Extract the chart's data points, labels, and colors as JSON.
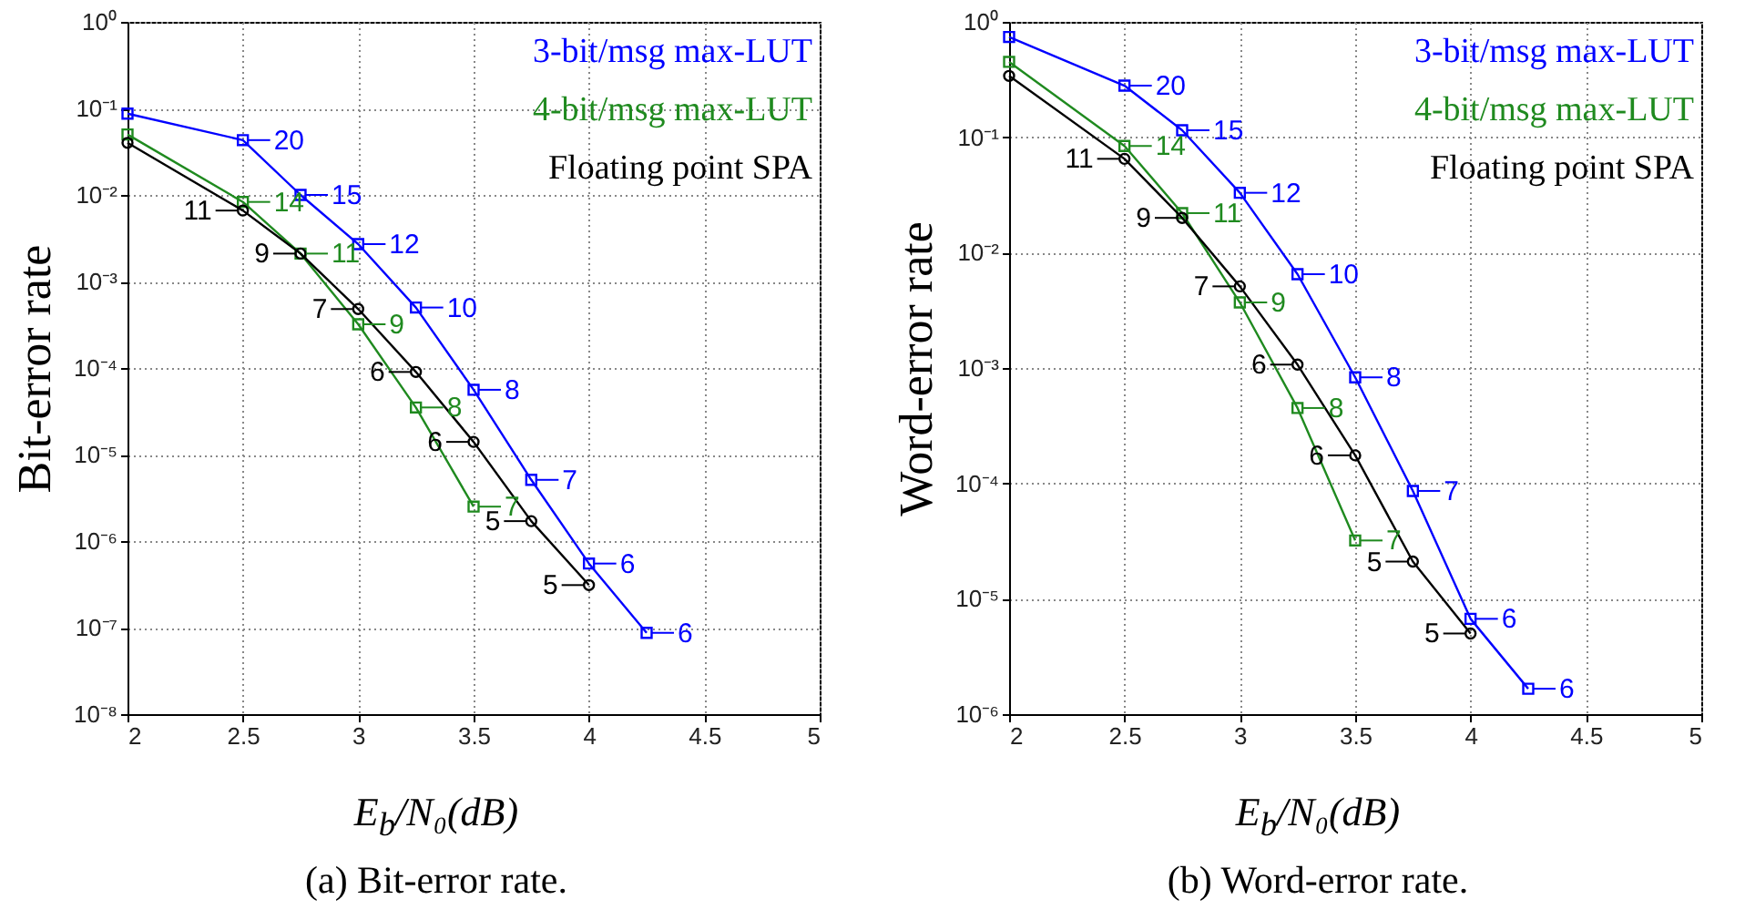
{
  "chart_data": [
    {
      "type": "line",
      "title": "(a) Bit-error rate.",
      "xlabel": "E$_{b}$/N₀(dB)",
      "ylabel": "Bit-error rate",
      "xlim": [
        2,
        5
      ],
      "xticks": [
        2,
        2.5,
        3,
        3.5,
        4,
        4.5,
        5
      ],
      "ylim": [
        1e-08,
        1
      ],
      "yticks": [
        {
          "value": 1e-08,
          "label": "10⁻⁸"
        },
        {
          "value": 1e-07,
          "label": "10⁻⁷"
        },
        {
          "value": 1e-06,
          "label": "10⁻⁶"
        },
        {
          "value": 1e-05,
          "label": "10⁻⁵"
        },
        {
          "value": 0.0001,
          "label": "10⁻⁴"
        },
        {
          "value": 0.001,
          "label": "10⁻³"
        },
        {
          "value": 0.01,
          "label": "10⁻²"
        },
        {
          "value": 0.1,
          "label": "10⁻¹"
        },
        {
          "value": 1,
          "label": "10⁰"
        }
      ],
      "log": "y",
      "grid": true,
      "legend": "top right",
      "line_style": "solid",
      "series": [
        {
          "name": "3-bit/msg max-LUT",
          "color": "#0000ff",
          "marker": "square",
          "x": [
            2,
            2.5,
            2.75,
            3,
            3.25,
            3.5,
            3.75,
            4,
            4.25
          ],
          "values": [
            0.087,
            0.043,
            0.01,
            0.0027,
            0.0005,
            5.6e-05,
            5.1e-06,
            5.5e-07,
            8.7e-08
          ]
        },
        {
          "name": "4-bit/msg max-LUT",
          "color": "#1f8a1f",
          "marker": "square",
          "x": [
            2,
            2.5,
            2.75,
            3,
            3.25,
            3.5
          ],
          "values": [
            0.05,
            0.0083,
            0.0021,
            0.00032,
            3.5e-05,
            2.5e-06
          ]
        },
        {
          "name": "Floating point SPA",
          "color": "#000000",
          "marker": "circle",
          "x": [
            2,
            2.5,
            2.75,
            3,
            3.25,
            3.5,
            3.75,
            4
          ],
          "values": [
            0.04,
            0.0066,
            0.0021,
            0.00048,
            9e-05,
            1.4e-05,
            1.7e-06,
            3.1e-07
          ]
        }
      ],
      "annotations": [
        {
          "text": "14",
          "x": 2.5,
          "y": 0.0083
        },
        {
          "text": "11",
          "x": 2.75,
          "y": 0.0021
        },
        {
          "text": "9",
          "x": 3,
          "y": 0.00032
        },
        {
          "text": "8",
          "x": 3.25,
          "y": 3.5e-05
        },
        {
          "text": "7",
          "x": 3.5,
          "y": 2.5e-06
        },
        {
          "text": "20",
          "x": 2.5,
          "y": 0.043
        },
        {
          "text": "15",
          "x": 2.75,
          "y": 0.01
        },
        {
          "text": "12",
          "x": 3,
          "y": 0.0027
        },
        {
          "text": "10",
          "x": 3.25,
          "y": 0.0005
        },
        {
          "text": "8",
          "x": 3.5,
          "y": 5.6e-05
        },
        {
          "text": "7",
          "x": 3.75,
          "y": 5.1e-06
        },
        {
          "text": "6",
          "x": 4,
          "y": 5.5e-07
        },
        {
          "text": "6",
          "x": 4.25,
          "y": 8.7e-08
        },
        {
          "text": "11",
          "x": 2.5,
          "y": 0.0066
        },
        {
          "text": "9",
          "x": 2.75,
          "y": 0.0021
        },
        {
          "text": "7",
          "x": 3,
          "y": 0.00048
        },
        {
          "text": "6",
          "x": 3.25,
          "y": 9e-05
        },
        {
          "text": "6",
          "x": 3.5,
          "y": 1.4e-05
        },
        {
          "text": "5",
          "x": 3.75,
          "y": 1.7e-06
        },
        {
          "text": "5",
          "x": 4,
          "y": 3.1e-07
        }
      ]
    },
    {
      "type": "line",
      "title": "(b) Word-error rate.",
      "xlabel": "E$_{b}$/N₀(dB)",
      "ylabel": "Word-error rate",
      "xlim": [
        2,
        5
      ],
      "xticks": [
        2,
        2.5,
        3,
        3.5,
        4,
        4.5,
        5
      ],
      "ylim": [
        1e-06,
        1
      ],
      "yticks": [
        {
          "value": 1e-06,
          "label": "10⁻⁶"
        },
        {
          "value": 1e-05,
          "label": "10⁻⁵"
        },
        {
          "value": 0.0001,
          "label": "10⁻⁴"
        },
        {
          "value": 0.001,
          "label": "10⁻³"
        },
        {
          "value": 0.01,
          "label": "10⁻²"
        },
        {
          "value": 0.1,
          "label": "10⁻¹"
        },
        {
          "value": 1,
          "label": "10⁰"
        }
      ],
      "log": "y",
      "grid": true,
      "legend": "top right",
      "line_style": "solid",
      "series": [
        {
          "name": "3-bit/msg max-LUT",
          "color": "#0000ff",
          "marker": "square",
          "x": [
            2,
            2.5,
            2.75,
            3,
            3.25,
            3.5,
            3.75,
            4,
            4.25
          ],
          "values": [
            0.74,
            0.28,
            0.115,
            0.033,
            0.0065,
            0.00083,
            8.6e-05,
            6.7e-06,
            1.66e-06
          ]
        },
        {
          "name": "4-bit/msg max-LUT",
          "color": "#1f8a1f",
          "marker": "square",
          "x": [
            2,
            2.5,
            2.75,
            3,
            3.25,
            3.5
          ],
          "values": [
            0.45,
            0.084,
            0.022,
            0.0037,
            0.00045,
            3.2e-05
          ]
        },
        {
          "name": "Floating point SPA",
          "color": "#000000",
          "marker": "circle",
          "x": [
            2,
            2.5,
            2.75,
            3,
            3.25,
            3.5,
            3.75,
            4
          ],
          "values": [
            0.34,
            0.065,
            0.02,
            0.0051,
            0.00107,
            0.000175,
            2.1e-05,
            5e-06
          ]
        }
      ],
      "annotations": [
        {
          "text": "14",
          "x": 2.5,
          "y": 0.084
        },
        {
          "text": "11",
          "x": 2.75,
          "y": 0.022
        },
        {
          "text": "9",
          "x": 3,
          "y": 0.0037
        },
        {
          "text": "8",
          "x": 3.25,
          "y": 0.00045
        },
        {
          "text": "7",
          "x": 3.5,
          "y": 3.2e-05
        },
        {
          "text": "20",
          "x": 2.5,
          "y": 0.28
        },
        {
          "text": "15",
          "x": 2.75,
          "y": 0.115
        },
        {
          "text": "12",
          "x": 3,
          "y": 0.033
        },
        {
          "text": "10",
          "x": 3.25,
          "y": 0.0065
        },
        {
          "text": "8",
          "x": 3.5,
          "y": 0.00083
        },
        {
          "text": "7",
          "x": 3.75,
          "y": 8.6e-05
        },
        {
          "text": "6",
          "x": 4,
          "y": 6.7e-06
        },
        {
          "text": "6",
          "x": 4.25,
          "y": 1.66e-06
        },
        {
          "text": "11",
          "x": 2.5,
          "y": 0.065
        },
        {
          "text": "9",
          "x": 2.75,
          "y": 0.02
        },
        {
          "text": "7",
          "x": 3,
          "y": 0.0051
        },
        {
          "text": "6",
          "x": 3.25,
          "y": 0.00107
        },
        {
          "text": "6",
          "x": 3.5,
          "y": 0.000175
        },
        {
          "text": "5",
          "x": 3.75,
          "y": 2.1e-05
        },
        {
          "text": "5",
          "x": 4,
          "y": 5e-06
        }
      ]
    }
  ]
}
